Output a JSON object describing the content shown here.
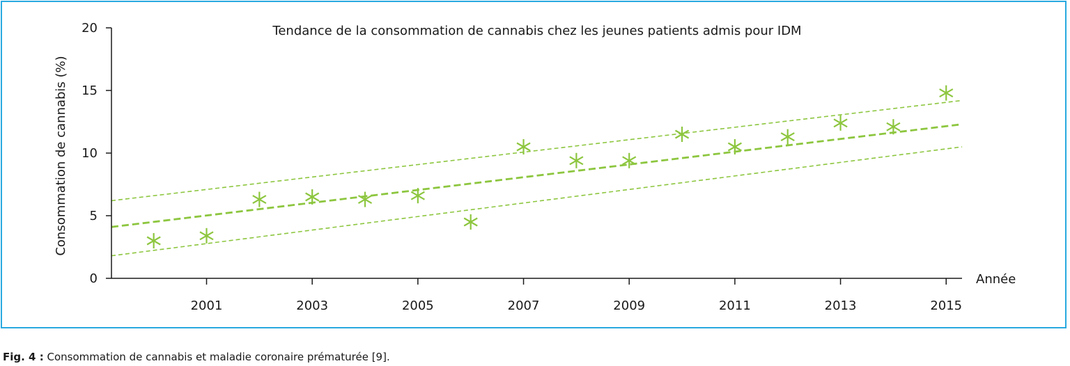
{
  "caption": {
    "label": "Fig. 4 :",
    "text": "Consommation de cannabis et maladie coronaire prématurée [9]."
  },
  "chart_data": {
    "type": "scatter",
    "title": "Tendance de la consommation de cannabis chez les jeunes patients admis pour IDM",
    "xlabel": "Année",
    "ylabel": "Consommation de cannabis (%)",
    "xlim": [
      1999.2,
      2015.3
    ],
    "ylim": [
      0,
      20
    ],
    "x_ticks": [
      2001,
      2003,
      2005,
      2007,
      2009,
      2011,
      2013,
      2015
    ],
    "y_ticks": [
      0,
      5,
      10,
      15,
      20
    ],
    "grid": false,
    "marker": "asterisk",
    "color": "#8dc63f",
    "points": [
      {
        "x": 2000,
        "y": 3.0
      },
      {
        "x": 2001,
        "y": 3.4
      },
      {
        "x": 2002,
        "y": 6.3
      },
      {
        "x": 2003,
        "y": 6.5
      },
      {
        "x": 2004,
        "y": 6.3
      },
      {
        "x": 2005,
        "y": 6.6
      },
      {
        "x": 2006,
        "y": 4.5
      },
      {
        "x": 2007,
        "y": 10.5
      },
      {
        "x": 2008,
        "y": 9.4
      },
      {
        "x": 2009,
        "y": 9.4
      },
      {
        "x": 2010,
        "y": 11.5
      },
      {
        "x": 2011,
        "y": 10.5
      },
      {
        "x": 2012,
        "y": 11.3
      },
      {
        "x": 2013,
        "y": 12.4
      },
      {
        "x": 2014,
        "y": 12.1
      },
      {
        "x": 2015,
        "y": 14.8
      }
    ],
    "trend_line": {
      "x": [
        1999.2,
        2015.3
      ],
      "y": [
        4.1,
        12.3
      ]
    },
    "upper_bound": {
      "x": [
        1999.2,
        2015.3
      ],
      "y": [
        6.2,
        14.2
      ]
    },
    "lower_bound": {
      "x": [
        1999.2,
        2015.3
      ],
      "y": [
        1.8,
        10.5
      ]
    }
  }
}
